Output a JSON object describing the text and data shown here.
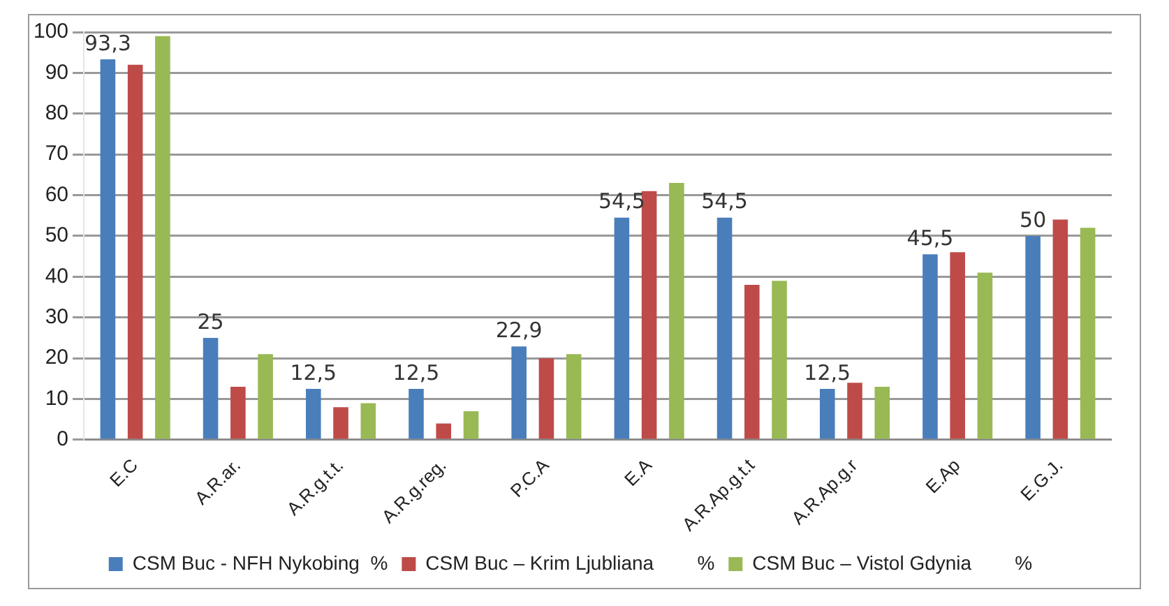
{
  "chart_data": {
    "type": "bar",
    "categories": [
      "E.C",
      "A.R.ar.",
      "A.R.g.t.t.",
      "A.R.g.reg.",
      "P.C.A",
      "E.A",
      "A.R.Ap.g.t.t",
      "A.R.Ap.g.r",
      "E.Ap",
      "E.G.J."
    ],
    "series": [
      {
        "name": "CSM Buc - NFH Nykobing  %",
        "color": "#4a7ebb",
        "values": [
          93.3,
          25,
          12.5,
          12.5,
          22.9,
          54.5,
          54.5,
          12.5,
          45.5,
          50
        ],
        "value_labels": [
          "93,3",
          "25",
          "12,5",
          "12,5",
          "22,9",
          "54,5",
          "54,5",
          "12,5",
          "45,5",
          "50"
        ]
      },
      {
        "name": "CSM Buc – Krim Ljubliana        %",
        "color": "#be4b48",
        "values": [
          92,
          13,
          8,
          4,
          20,
          61,
          38,
          14,
          46,
          54
        ]
      },
      {
        "name": "CSM Buc – Vistol Gdynia        %",
        "color": "#98b954",
        "values": [
          99,
          21,
          9,
          7,
          21,
          63,
          39,
          13,
          41,
          52
        ]
      }
    ],
    "ylim": [
      0,
      100
    ],
    "yticks": [
      0,
      10,
      20,
      30,
      40,
      50,
      60,
      70,
      80,
      90,
      100
    ],
    "grid": "y",
    "legend": "bottom"
  }
}
